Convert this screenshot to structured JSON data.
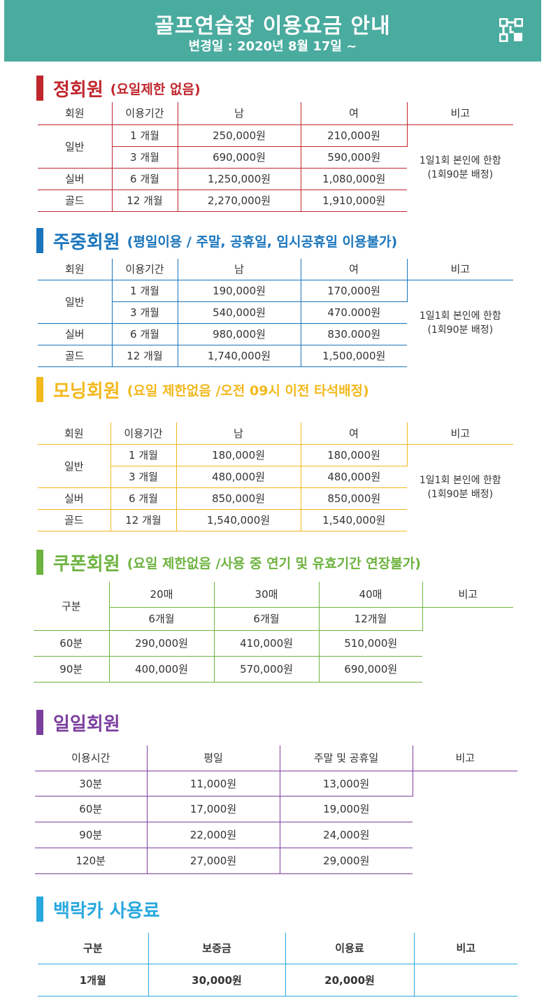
{
  "header": {
    "title": "골프연습장 이용요금 안내",
    "subtitle": "변경일 : 2020년 8월 17일 ~",
    "icon": "qr-code-icon"
  },
  "regular": {
    "name": "정회원",
    "note": "(요일제한 없음)",
    "color": "#c0272d",
    "headers": [
      "회원",
      "이용기간",
      "남",
      "여",
      "비고"
    ],
    "rows": [
      {
        "type": "일반",
        "period": "1 개월",
        "male": "250,000원",
        "female": "210,000원"
      },
      {
        "type": "",
        "period": "3 개월",
        "male": "690,000원",
        "female": "590,000원"
      },
      {
        "type": "실버",
        "period": "6 개월",
        "male": "1,250,000원",
        "female": "1,080,000원"
      },
      {
        "type": "골드",
        "period": "12 개월",
        "male": "2,270,000원",
        "female": "1,910,000원"
      }
    ],
    "remark_line1": "1일1회 본인에 한함",
    "remark_line2": "(1회90분 배정)"
  },
  "weekday": {
    "name": "주중회원",
    "note": "(평일이용 / 주말, 공휴일, 임시공휴일 이용불가)",
    "color": "#1a75bc",
    "headers": [
      "회원",
      "이용기간",
      "남",
      "여",
      "비고"
    ],
    "rows": [
      {
        "type": "일반",
        "period": "1 개월",
        "male": "190,000원",
        "female": "170,000원"
      },
      {
        "type": "",
        "period": "3 개월",
        "male": "540,000원",
        "female": "470.000원"
      },
      {
        "type": "실버",
        "period": "6 개월",
        "male": "980,000원",
        "female": "830.000원"
      },
      {
        "type": "골드",
        "period": "12 개월",
        "male": "1,740,000원",
        "female": "1,500,000원"
      }
    ],
    "remark_line1": "1일1회 본인에 한함",
    "remark_line2": "(1회90분 배정)"
  },
  "morning": {
    "name": "모닝회원",
    "note": "(요일 제한없음 /오전 09시 이전 타석배정)",
    "color": "#f2b81c",
    "headers": [
      "회원",
      "이용기간",
      "남",
      "여",
      "비고"
    ],
    "rows": [
      {
        "type": "일반",
        "period": "1 개월",
        "male": "180,000원",
        "female": "180,000원"
      },
      {
        "type": "",
        "period": "3 개월",
        "male": "480,000원",
        "female": "480,000원"
      },
      {
        "type": "실버",
        "period": "6 개월",
        "male": "850,000원",
        "female": "850,000원"
      },
      {
        "type": "골드",
        "period": "12 개월",
        "male": "1,540,000원",
        "female": "1,540,000원"
      }
    ],
    "remark_line1": "1일1회 본인에 한함",
    "remark_line2": "(1회90분 배정)"
  },
  "coupon": {
    "name": "쿠폰회원",
    "note": "(요일 제한없음 /사용 중 연기 및 유효기간 연장불가)",
    "color": "#6db33f",
    "header_label": "구분",
    "counts": [
      "20매",
      "30매",
      "40매"
    ],
    "validity": [
      "6개월",
      "6개월",
      "12개월"
    ],
    "remark": "비고",
    "rows": [
      {
        "label": "60분",
        "values": [
          "290,000원",
          "410,000원",
          "510,000원"
        ]
      },
      {
        "label": "90분",
        "values": [
          "400,000원",
          "570,000원",
          "690,000원"
        ]
      }
    ]
  },
  "daily": {
    "name": "일일회원",
    "color": "#7b3f9e",
    "headers": [
      "이용시간",
      "평일",
      "주말 및 공휴일",
      "비고"
    ],
    "rows": [
      {
        "time": "30분",
        "weekday": "11,000원",
        "weekend": "13,000원"
      },
      {
        "time": "60분",
        "weekday": "17,000원",
        "weekend": "19,000원"
      },
      {
        "time": "90분",
        "weekday": "22,000원",
        "weekend": "24,000원"
      },
      {
        "time": "120분",
        "weekday": "27,000원",
        "weekend": "29,000원"
      }
    ]
  },
  "locker": {
    "name": "백락카 사용료",
    "color": "#29a8df",
    "headers": [
      "구분",
      "보증금",
      "이용료",
      "비고"
    ],
    "row": {
      "label": "1개월",
      "deposit": "30,000원",
      "fee": "20,000원"
    }
  }
}
